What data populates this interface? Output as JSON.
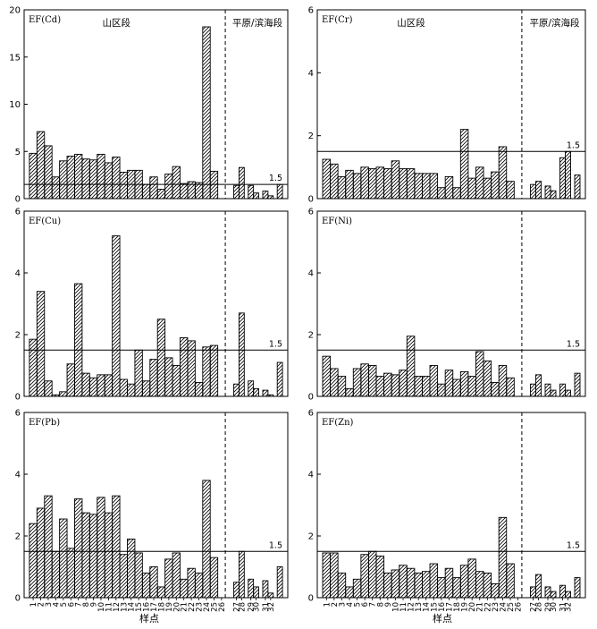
{
  "chart_data": {
    "type": "bar",
    "xlabel": "样点",
    "region_labels": [
      "山区段",
      "平原/滨海段"
    ],
    "x": [
      "1",
      "2",
      "3",
      "4",
      "5",
      "6",
      "7",
      "8",
      "9",
      "10",
      "11",
      "12",
      "13",
      "14",
      "15",
      "16",
      "17",
      "18",
      "19",
      "20",
      "21",
      "22",
      "23",
      "24",
      "25",
      "26",
      "27",
      "28",
      "29",
      "30",
      "31",
      "32"
    ],
    "threshold": 1.5,
    "threshold_label": "1.5",
    "panels": [
      {
        "label": "EF(Cd)",
        "ylim": [
          0,
          20
        ],
        "yticks": [
          0,
          5,
          10,
          15,
          20
        ],
        "show_region_labels": true,
        "show_x_labels": false,
        "pairs": [
          [
            4.8,
            7.1
          ],
          [
            5.6,
            2.3
          ],
          [
            4.0,
            4.5
          ],
          [
            4.7,
            4.2
          ],
          [
            4.1,
            4.7
          ],
          [
            3.8,
            4.4
          ],
          [
            2.8,
            3.0
          ],
          [
            3.0,
            1.5
          ],
          [
            2.3,
            1.0
          ],
          [
            2.6,
            3.4
          ],
          [
            1.6,
            1.8
          ],
          [
            1.7,
            18.2
          ],
          [
            2.9,
            null
          ],
          [
            1.4,
            3.3
          ],
          [
            1.4,
            0.6
          ],
          [
            0.8,
            0.3
          ],
          [
            1.5,
            null
          ]
        ]
      },
      {
        "label": "EF(Cr)",
        "ylim": [
          0,
          6
        ],
        "yticks": [
          0,
          2,
          4,
          6
        ],
        "show_region_labels": true,
        "show_x_labels": false,
        "pairs": [
          [
            1.25,
            1.1
          ],
          [
            0.7,
            0.9
          ],
          [
            0.8,
            1.0
          ],
          [
            0.95,
            1.0
          ],
          [
            0.95,
            1.2
          ],
          [
            0.95,
            0.95
          ],
          [
            0.8,
            0.8
          ],
          [
            0.8,
            0.35
          ],
          [
            0.7,
            0.35
          ],
          [
            2.2,
            0.65
          ],
          [
            1.0,
            0.65
          ],
          [
            0.85,
            1.65
          ],
          [
            0.55,
            null
          ],
          [
            0.45,
            0.55
          ],
          [
            0.4,
            0.25
          ],
          [
            1.3,
            1.5
          ],
          [
            0.75,
            null
          ]
        ]
      },
      {
        "label": "EF(Cu)",
        "ylim": [
          0,
          6
        ],
        "yticks": [
          0,
          2,
          4,
          6
        ],
        "show_region_labels": false,
        "show_x_labels": false,
        "pairs": [
          [
            1.85,
            3.4
          ],
          [
            0.5,
            0.05
          ],
          [
            0.15,
            1.05
          ],
          [
            3.65,
            0.75
          ],
          [
            0.6,
            0.7
          ],
          [
            0.7,
            5.2
          ],
          [
            0.55,
            0.4
          ],
          [
            1.5,
            0.5
          ],
          [
            1.2,
            2.5
          ],
          [
            1.25,
            1.0
          ],
          [
            1.9,
            1.8
          ],
          [
            0.45,
            1.6
          ],
          [
            1.65,
            null
          ],
          [
            0.4,
            2.7
          ],
          [
            0.5,
            0.25
          ],
          [
            0.2,
            0.05
          ],
          [
            1.1,
            null
          ]
        ]
      },
      {
        "label": "EF(Ni)",
        "ylim": [
          0,
          6
        ],
        "yticks": [
          0,
          2,
          4,
          6
        ],
        "show_region_labels": false,
        "show_x_labels": false,
        "pairs": [
          [
            1.3,
            0.9
          ],
          [
            0.65,
            0.25
          ],
          [
            0.9,
            1.05
          ],
          [
            1.0,
            0.65
          ],
          [
            0.75,
            0.7
          ],
          [
            0.85,
            1.95
          ],
          [
            0.65,
            0.65
          ],
          [
            1.0,
            0.4
          ],
          [
            0.85,
            0.55
          ],
          [
            0.8,
            0.65
          ],
          [
            1.45,
            1.15
          ],
          [
            0.45,
            1.0
          ],
          [
            0.6,
            null
          ],
          [
            0.4,
            0.7
          ],
          [
            0.4,
            0.2
          ],
          [
            0.4,
            0.2
          ],
          [
            0.75,
            null
          ]
        ]
      },
      {
        "label": "EF(Pb)",
        "ylim": [
          0,
          6
        ],
        "yticks": [
          0,
          2,
          4,
          6
        ],
        "show_region_labels": false,
        "show_x_labels": true,
        "pairs": [
          [
            2.4,
            2.9
          ],
          [
            3.3,
            1.5
          ],
          [
            2.55,
            1.6
          ],
          [
            3.2,
            2.75
          ],
          [
            2.7,
            3.25
          ],
          [
            2.75,
            3.3
          ],
          [
            1.4,
            1.9
          ],
          [
            1.45,
            0.8
          ],
          [
            1.0,
            0.35
          ],
          [
            1.25,
            1.45
          ],
          [
            0.6,
            0.95
          ],
          [
            0.8,
            3.8
          ],
          [
            1.3,
            null
          ],
          [
            0.5,
            1.5
          ],
          [
            0.6,
            0.35
          ],
          [
            0.55,
            0.15
          ],
          [
            1.0,
            null
          ]
        ]
      },
      {
        "label": "EF(Zn)",
        "ylim": [
          0,
          6
        ],
        "yticks": [
          0,
          2,
          4,
          6
        ],
        "show_region_labels": false,
        "show_x_labels": true,
        "pairs": [
          [
            1.45,
            1.45
          ],
          [
            0.8,
            0.35
          ],
          [
            0.6,
            1.4
          ],
          [
            1.5,
            1.35
          ],
          [
            0.8,
            0.9
          ],
          [
            1.05,
            0.95
          ],
          [
            0.8,
            0.85
          ],
          [
            1.1,
            0.65
          ],
          [
            0.95,
            0.65
          ],
          [
            1.05,
            1.25
          ],
          [
            0.85,
            0.8
          ],
          [
            0.45,
            2.6
          ],
          [
            1.1,
            null
          ],
          [
            0.35,
            0.75
          ],
          [
            0.35,
            0.2
          ],
          [
            0.4,
            0.2
          ],
          [
            0.65,
            null
          ]
        ]
      }
    ]
  }
}
